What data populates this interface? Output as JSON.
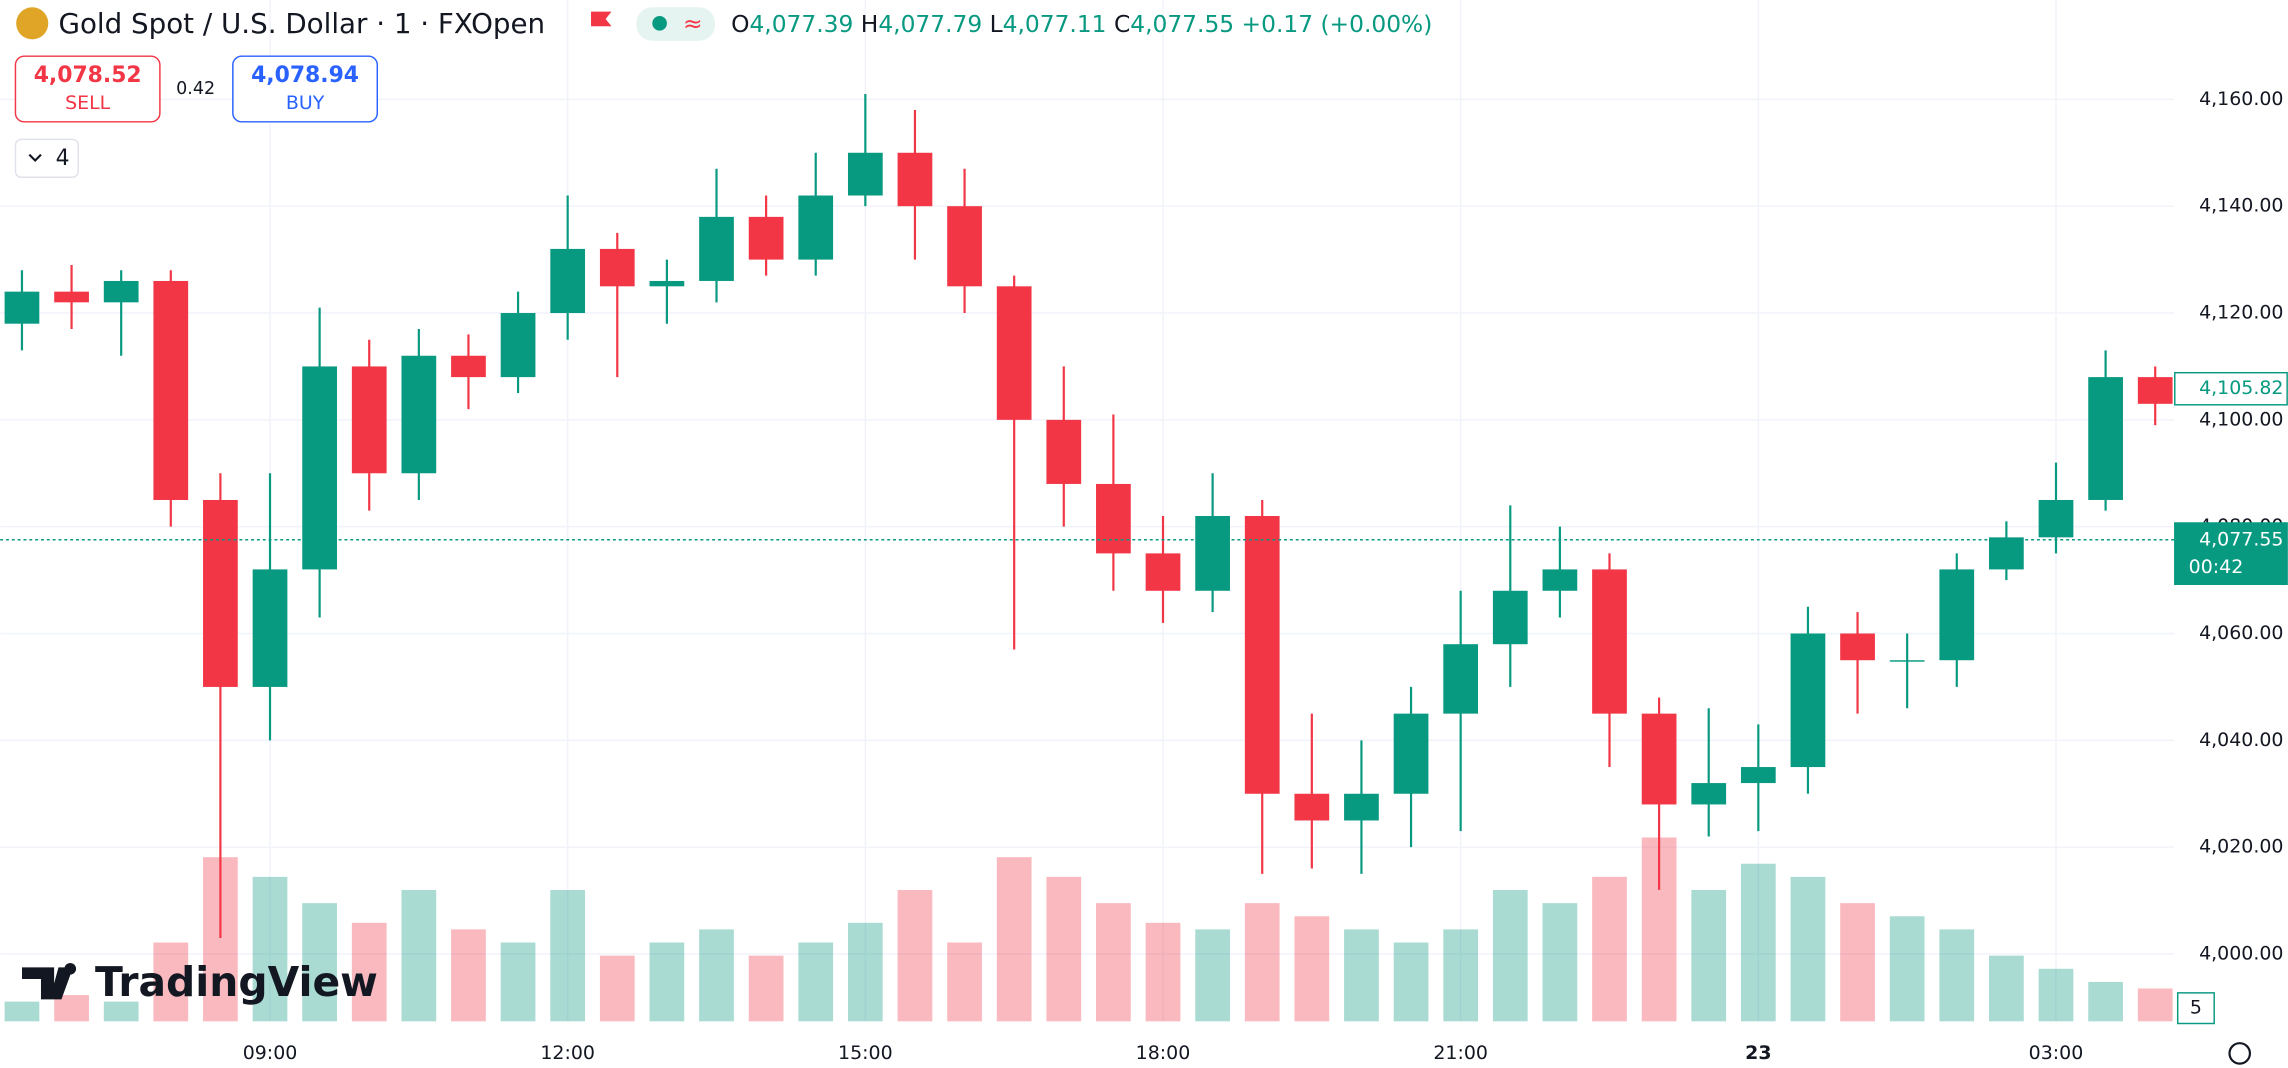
{
  "header": {
    "title": "Gold Spot / U.S. Dollar · 1 · FXOpen",
    "ohlc": [
      {
        "key": "O",
        "value": "4,077.39"
      },
      {
        "key": "H",
        "value": "4,077.79"
      },
      {
        "key": "L",
        "value": "4,077.11"
      },
      {
        "key": "C",
        "value": "4,077.55"
      }
    ],
    "change": "+0.17 (+0.00%)"
  },
  "trade": {
    "sell_price": "4,078.52",
    "sell": "SELL",
    "spread": "0.42",
    "buy_price": "4,078.94",
    "buy": "BUY",
    "indicators": "4"
  },
  "brand": "TradingView",
  "chart_data": {
    "type": "candlestick",
    "x": [
      6.5,
      7,
      7.5,
      8,
      8.5,
      9,
      9.5,
      10,
      10.5,
      11,
      11.5,
      12,
      12.5,
      13,
      13.5,
      14,
      14.5,
      15,
      15.5,
      16,
      16.5,
      17,
      17.5,
      18,
      18.5,
      19,
      19.5,
      20,
      20.5,
      21,
      21.5,
      22,
      22.5,
      23,
      23.5,
      24,
      24.5,
      25,
      25.5,
      26,
      26.5,
      27,
      27.5,
      28
    ],
    "open": [
      4118,
      4124,
      4122,
      4126,
      4085,
      4050,
      4072,
      4110,
      4090,
      4112,
      4108,
      4120,
      4132,
      4125,
      4126,
      4138,
      4130,
      4142,
      4150,
      4140,
      4125,
      4100,
      4088,
      4075,
      4068,
      4082,
      4030,
      4025,
      4030,
      4045,
      4058,
      4068,
      4072,
      4045,
      4028,
      4032,
      4035,
      4060,
      4055,
      4055,
      4072,
      4078,
      4085,
      4108
    ],
    "high": [
      4128,
      4129,
      4128,
      4128,
      4090,
      4090,
      4121,
      4115,
      4117,
      4116,
      4124,
      4142,
      4135,
      4130,
      4147,
      4142,
      4150,
      4161,
      4158,
      4147,
      4127,
      4110,
      4101,
      4082,
      4090,
      4085,
      4045,
      4040,
      4050,
      4068,
      4084,
      4080,
      4075,
      4048,
      4046,
      4043,
      4065,
      4064,
      4060,
      4075,
      4081,
      4092,
      4113,
      4110
    ],
    "low": [
      4113,
      4117,
      4112,
      4080,
      4003,
      4040,
      4063,
      4083,
      4085,
      4102,
      4105,
      4115,
      4108,
      4118,
      4122,
      4127,
      4127,
      4140,
      4130,
      4120,
      4057,
      4080,
      4068,
      4062,
      4064,
      4015,
      4016,
      4015,
      4020,
      4023,
      4050,
      4063,
      4035,
      4012,
      4022,
      4023,
      4030,
      4045,
      4046,
      4050,
      4070,
      4075,
      4083,
      4099
    ],
    "close": [
      4124,
      4122,
      4126,
      4085,
      4050,
      4072,
      4110,
      4090,
      4112,
      4108,
      4120,
      4132,
      4125,
      4126,
      4138,
      4130,
      4142,
      4150,
      4140,
      4125,
      4100,
      4088,
      4075,
      4068,
      4082,
      4030,
      4025,
      4030,
      4045,
      4058,
      4068,
      4072,
      4045,
      4028,
      4032,
      4035,
      4060,
      4055,
      4055,
      4072,
      4078,
      4085,
      4108,
      4103
    ],
    "volume": [
      3,
      4,
      3,
      12,
      25,
      22,
      18,
      15,
      20,
      14,
      12,
      20,
      10,
      12,
      14,
      10,
      12,
      15,
      20,
      12,
      25,
      22,
      18,
      15,
      14,
      18,
      16,
      14,
      12,
      14,
      20,
      18,
      22,
      28,
      20,
      24,
      22,
      18,
      16,
      14,
      10,
      8,
      6,
      5
    ],
    "up_color": "#089981",
    "down_color": "#f23645",
    "xlim": [
      6.28,
      28.19
    ],
    "ylim": [
      3987.4,
      4178.6
    ],
    "volume_lim": [
      0,
      40
    ],
    "xticks": [
      {
        "value": 9,
        "label": "09:00"
      },
      {
        "value": 12,
        "label": "12:00"
      },
      {
        "value": 15,
        "label": "15:00"
      },
      {
        "value": 18,
        "label": "18:00"
      },
      {
        "value": 21,
        "label": "21:00"
      },
      {
        "value": 24,
        "label": "23"
      },
      {
        "value": 27,
        "label": "03:00"
      }
    ],
    "yticks": [
      {
        "value": 4000,
        "label": "4,000.00"
      },
      {
        "value": 4020,
        "label": "4,020.00"
      },
      {
        "value": 4040,
        "label": "4,040.00"
      },
      {
        "value": 4060,
        "label": "4,060.00"
      },
      {
        "value": 4080,
        "label": "4,080.00"
      },
      {
        "value": 4100,
        "label": "4,100.00"
      },
      {
        "value": 4120,
        "label": "4,120.00"
      },
      {
        "value": 4140,
        "label": "4,140.00"
      },
      {
        "value": 4160,
        "label": "4,160.00"
      }
    ],
    "grid": true,
    "price_labels": [
      {
        "value": 4105.82,
        "label": "4,105.82"
      },
      {
        "value": 4077.55,
        "label": "4,077.55",
        "countdown": "00:42"
      }
    ]
  }
}
